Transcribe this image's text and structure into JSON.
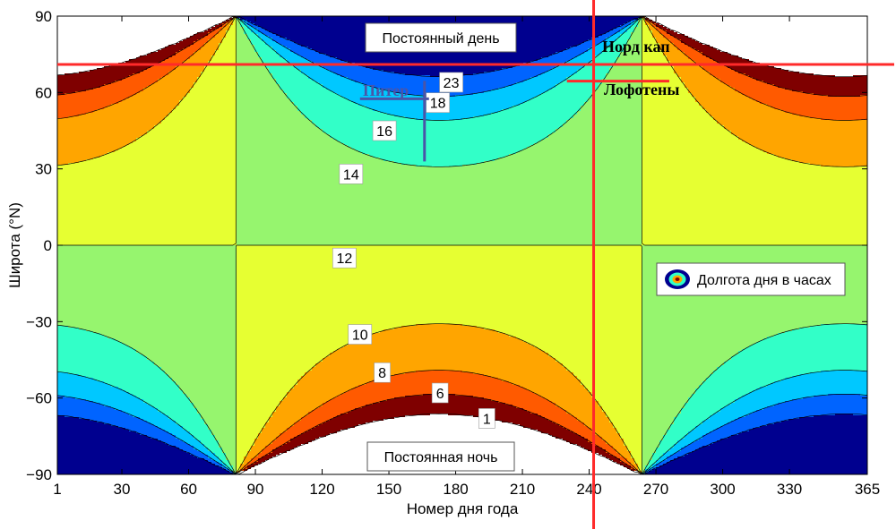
{
  "chart_data": {
    "type": "contour",
    "xlabel": "Номер дня года",
    "ylabel": "Широта (°N)",
    "xlim": [
      1,
      365
    ],
    "ylim": [
      -90,
      90
    ],
    "x_ticks": [
      "1",
      "30",
      "60",
      "90",
      "120",
      "150",
      "180",
      "210",
      "240",
      "270",
      "300",
      "330",
      "365"
    ],
    "y_ticks": [
      "90",
      "60",
      "30",
      "0",
      "−30",
      "−60",
      "−90"
    ],
    "contour_levels_hours": [
      1,
      6,
      8,
      10,
      12,
      14,
      16,
      18,
      23
    ],
    "fill_colors": [
      "#ffffff",
      "#7f0000",
      "#ff5a00",
      "#ffa500",
      "#e6ff32",
      "#96f56e",
      "#32ffc8",
      "#00c8ff",
      "#0064ff",
      "#00008f"
    ],
    "contour_labels": [
      {
        "text": "23",
        "day": 178,
        "lat": 64
      },
      {
        "text": "18",
        "day": 172,
        "lat": 56
      },
      {
        "text": "16",
        "day": 148,
        "lat": 45
      },
      {
        "text": "14",
        "day": 133,
        "lat": 28
      },
      {
        "text": "12",
        "day": 130,
        "lat": -5
      },
      {
        "text": "10",
        "day": 137,
        "lat": -35
      },
      {
        "text": "8",
        "day": 147,
        "lat": -50
      },
      {
        "text": "6",
        "day": 173,
        "lat": -58
      },
      {
        "text": "1",
        "day": 194,
        "lat": -68
      }
    ],
    "region_labels": {
      "polar_day": "Постоянный день",
      "polar_night": "Постоянная ночь"
    },
    "annotations": [
      {
        "text": "Питер",
        "color": "#4a55a8",
        "day": 166,
        "lat": 60
      },
      {
        "text": "Норд кап",
        "color": "#000000",
        "day": 270,
        "lat": 71
      },
      {
        "text": "Лофотены",
        "color": "#000000",
        "day": 275,
        "lat": 68
      }
    ],
    "reference_lines": {
      "latitude": 71,
      "day": 242,
      "color": "#ff2a2a"
    },
    "legend": {
      "text": "Долгота дня в часах",
      "placement": "right"
    }
  }
}
